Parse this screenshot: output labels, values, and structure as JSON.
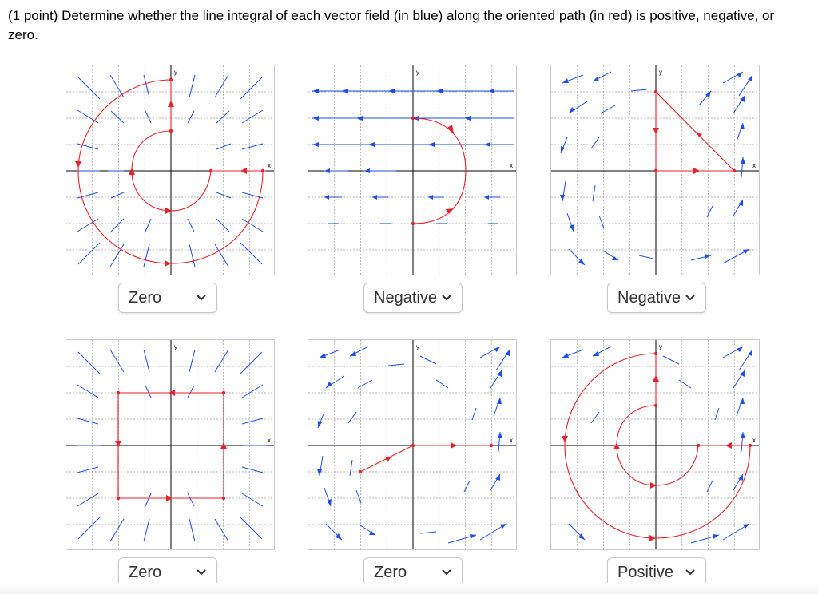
{
  "prompt": "(1 point) Determine whether the line integral of each vector field (in blue) along the oriented path (in red) is positive, negative, or zero.",
  "colors": {
    "field": "#1f4ee8",
    "path": "#e8202a",
    "axis": "#000000",
    "grid": "#9a9a9a",
    "frame": "#c9c9c9"
  },
  "axis_labels": {
    "x": "x",
    "y": "y"
  },
  "icons": {
    "dropdown": "chevron-down-icon"
  },
  "problems": [
    {
      "id": 1,
      "field": "radial inward to origin",
      "path": "spiral from positive x-axis out to large loop ending at top",
      "answer": "Zero"
    },
    {
      "id": 2,
      "field": "horizontal, pointing left",
      "path": "right semicircle clockwise from top to bottom",
      "answer": "Negative"
    },
    {
      "id": 3,
      "field": "counterclockwise rotation",
      "path": "triangle: top-left down, right along x-axis, up diagonal",
      "answer": "Negative"
    },
    {
      "id": 4,
      "field": "radial inward to origin",
      "path": "square traversed counterclockwise",
      "answer": "Zero"
    },
    {
      "id": 5,
      "field": "counterclockwise rotation",
      "path": "segment to origin then along positive x-axis",
      "answer": "Zero"
    },
    {
      "id": 6,
      "field": "counterclockwise rotation",
      "path": "spiral counterclockwise ending at top",
      "answer": "Positive"
    }
  ]
}
